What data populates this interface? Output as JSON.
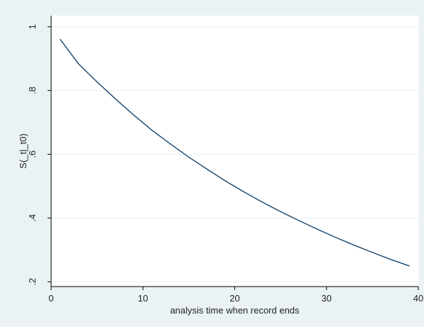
{
  "chart_data": {
    "type": "line",
    "title": "",
    "xlabel": "analysis time when record ends",
    "ylabel": "S(_t|_t0)",
    "xlim": [
      0,
      40
    ],
    "ylim": [
      0.2,
      1.0
    ],
    "x_ticks": [
      0,
      10,
      20,
      30,
      40
    ],
    "x_tick_labels": [
      "0",
      "10",
      "20",
      "30",
      "40"
    ],
    "y_ticks": [
      0.2,
      0.4,
      0.6,
      0.8,
      1.0
    ],
    "y_tick_labels": [
      ".2",
      ".4",
      ".6",
      ".8",
      "1"
    ],
    "grid": true,
    "legend": "none",
    "series": [
      {
        "color": "#1a476f",
        "x": [
          1,
          3,
          5,
          7,
          9,
          11,
          13,
          15,
          17,
          19,
          21,
          23,
          25,
          27,
          29,
          31,
          33,
          35,
          37,
          39
        ],
        "y": [
          0.96,
          0.883,
          0.827,
          0.774,
          0.723,
          0.675,
          0.632,
          0.591,
          0.553,
          0.516,
          0.482,
          0.45,
          0.42,
          0.392,
          0.365,
          0.339,
          0.315,
          0.292,
          0.27,
          0.25
        ]
      }
    ],
    "colors": {
      "figure_background": "#eaf2f3",
      "plot_background": "#ffffff",
      "grid": "#eaf2f3",
      "line": "#1a476f"
    }
  }
}
